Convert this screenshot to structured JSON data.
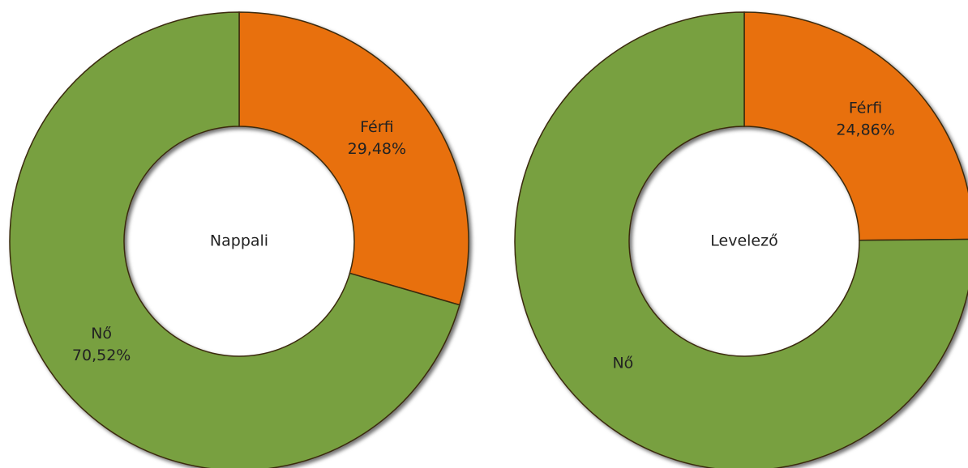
{
  "chart_data": [
    {
      "type": "donut",
      "title": "Nappali",
      "categories": [
        "Férfi",
        "Nő"
      ],
      "values": [
        29.48,
        70.52
      ],
      "value_labels": [
        "29,48%",
        "70,52%"
      ],
      "colors": [
        "#e8700a",
        "#78a040"
      ]
    },
    {
      "type": "donut",
      "title": "Levelező",
      "categories": [
        "Férfi",
        "Nő"
      ],
      "values": [
        24.86,
        75.14
      ],
      "value_labels": [
        "24,86%",
        null
      ],
      "colors": [
        "#e8700a",
        "#78a040"
      ]
    }
  ]
}
